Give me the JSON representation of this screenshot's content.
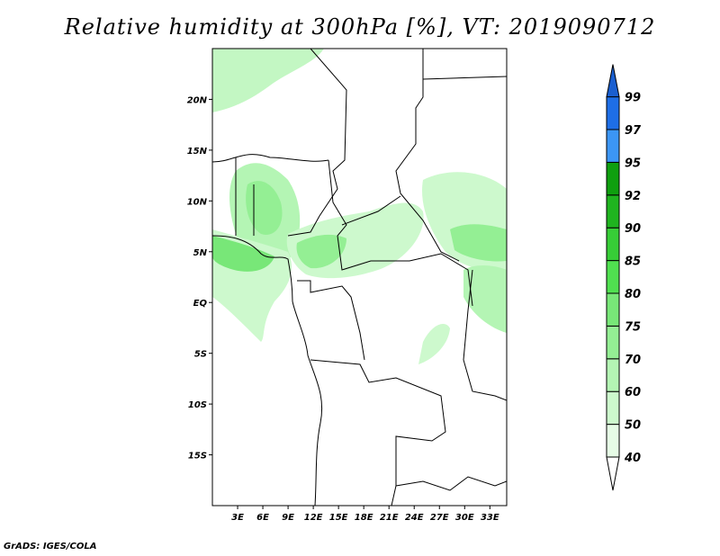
{
  "title": "Relative humidity at 300hPa [%], VT: 2019090712",
  "credit": "GrADS: IGES/COLA",
  "map": {
    "variable": "Relative humidity",
    "level": "300hPa",
    "units": "%",
    "valid_time": "2019090712",
    "lon_range": [
      0,
      35
    ],
    "lat_range": [
      -20,
      25
    ],
    "lat_labels": [
      "20N",
      "15N",
      "10N",
      "5N",
      "EQ",
      "5S",
      "10S",
      "15S"
    ],
    "lat_values": [
      20,
      15,
      10,
      5,
      0,
      -5,
      -10,
      -15
    ],
    "lon_labels": [
      "3E",
      "6E",
      "9E",
      "12E",
      "15E",
      "18E",
      "21E",
      "24E",
      "27E",
      "30E",
      "33E"
    ],
    "lon_values": [
      3,
      6,
      9,
      12,
      15,
      18,
      21,
      24,
      27,
      30,
      33
    ]
  },
  "colorbar": {
    "levels": [
      "40",
      "50",
      "60",
      "70",
      "75",
      "80",
      "85",
      "90",
      "92",
      "95",
      "97",
      "99"
    ],
    "colors": [
      "#e6fce6",
      "#cdf9cd",
      "#b4f5b4",
      "#94ef94",
      "#78e778",
      "#50e050",
      "#37cd37",
      "#1fb41f",
      "#0f9f0f",
      "#3c96f5",
      "#1e6ee6",
      "#1a5fd0"
    ],
    "below_color": "#ffffff"
  }
}
